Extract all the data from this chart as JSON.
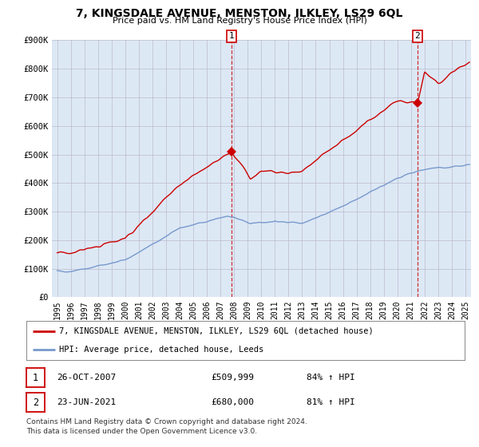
{
  "title": "7, KINGSDALE AVENUE, MENSTON, ILKLEY, LS29 6QL",
  "subtitle": "Price paid vs. HM Land Registry's House Price Index (HPI)",
  "legend_line1": "7, KINGSDALE AVENUE, MENSTON, ILKLEY, LS29 6QL (detached house)",
  "legend_line2": "HPI: Average price, detached house, Leeds",
  "table_rows": [
    {
      "num": "1",
      "date": "26-OCT-2007",
      "price": "£509,999",
      "hpi": "84% ↑ HPI"
    },
    {
      "num": "2",
      "date": "23-JUN-2021",
      "price": "£680,000",
      "hpi": "81% ↑ HPI"
    }
  ],
  "footer1": "Contains HM Land Registry data © Crown copyright and database right 2024.",
  "footer2": "This data is licensed under the Open Government Licence v3.0.",
  "red_color": "#cc0000",
  "blue_color": "#7799cc",
  "plot_bg_color": "#dde8f5",
  "sale1_x": 2007.82,
  "sale1_y": 509999,
  "sale2_x": 2021.47,
  "sale2_y": 680000,
  "ylim": [
    0,
    900000
  ],
  "xlim": [
    1994.6,
    2025.4
  ],
  "yticks": [
    0,
    100000,
    200000,
    300000,
    400000,
    500000,
    600000,
    700000,
    800000,
    900000
  ],
  "ytick_labels": [
    "£0",
    "£100K",
    "£200K",
    "£300K",
    "£400K",
    "£500K",
    "£600K",
    "£700K",
    "£800K",
    "£900K"
  ],
  "xticks": [
    1995,
    1996,
    1997,
    1998,
    1999,
    2000,
    2001,
    2002,
    2003,
    2004,
    2005,
    2006,
    2007,
    2008,
    2009,
    2010,
    2011,
    2012,
    2013,
    2014,
    2015,
    2016,
    2017,
    2018,
    2019,
    2020,
    2021,
    2022,
    2023,
    2024,
    2025
  ],
  "background_color": "#ffffff",
  "grid_color": "#bbbbcc"
}
